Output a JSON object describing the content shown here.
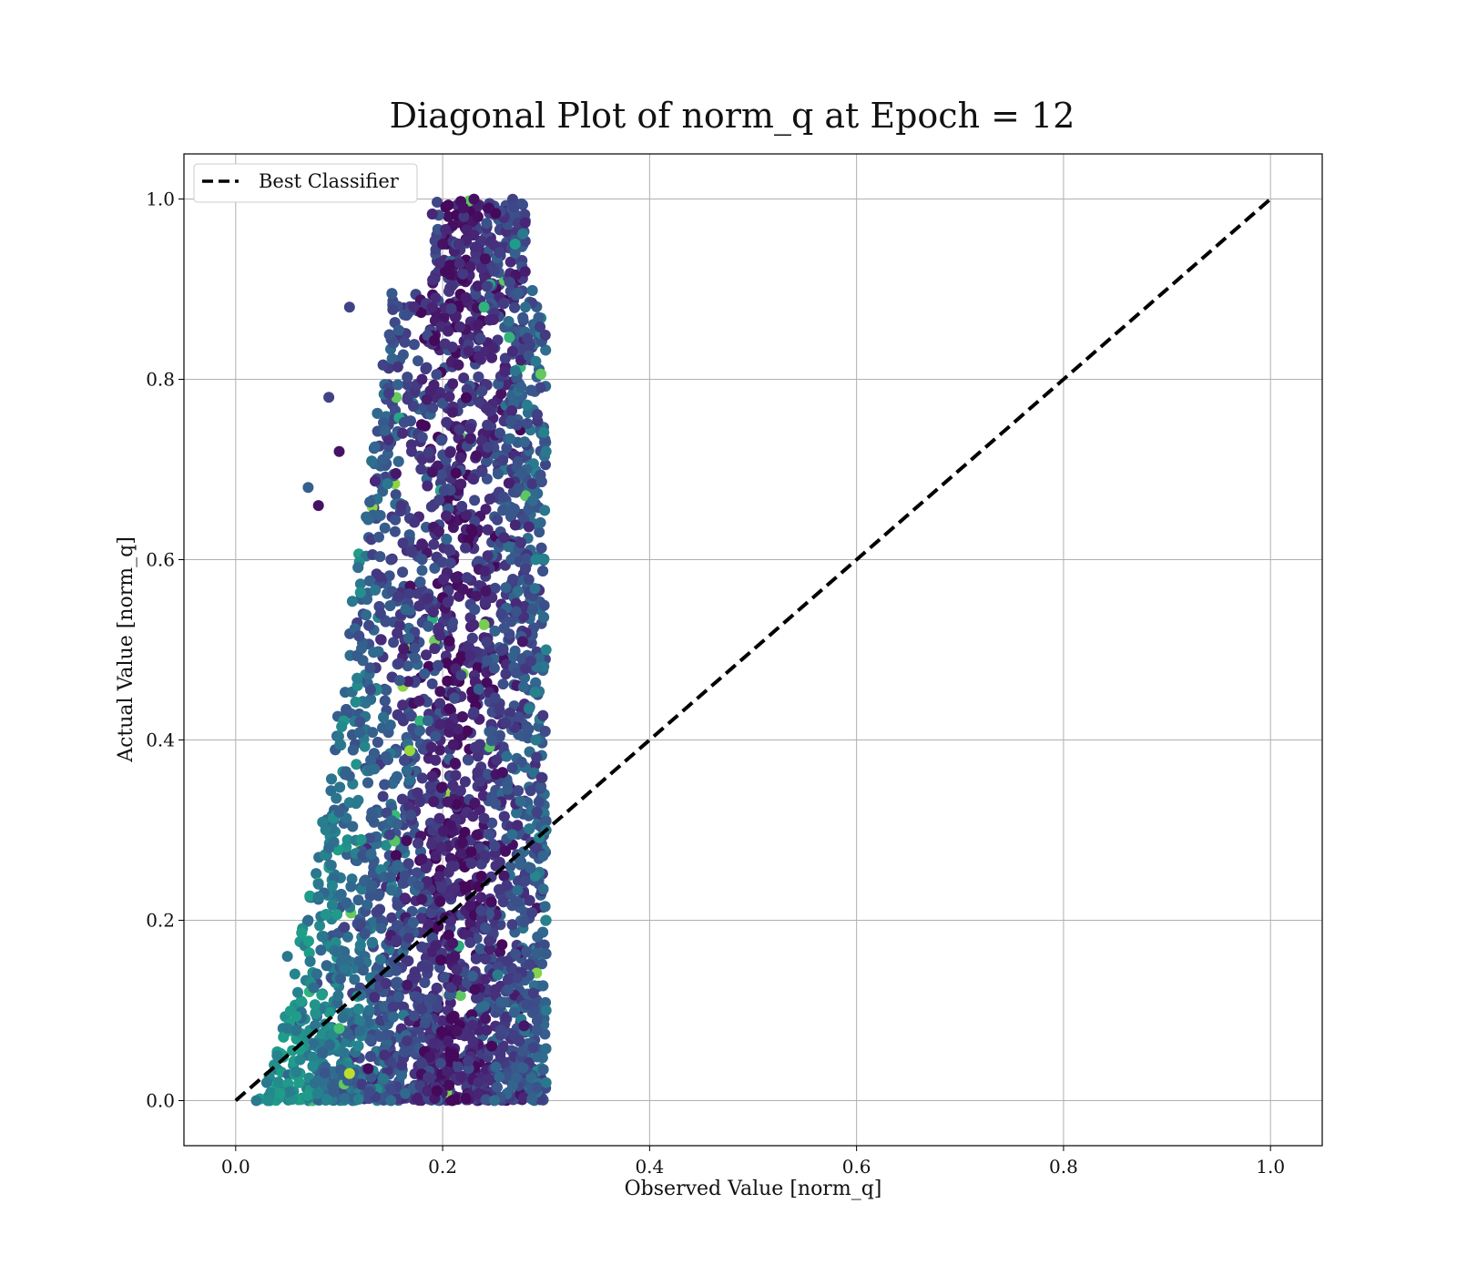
{
  "chart_data": {
    "type": "scatter",
    "title": "Diagonal Plot of norm_q at Epoch = 12",
    "xlabel": "Observed Value [norm_q]",
    "ylabel": "Actual Value [norm_q]",
    "xlim": [
      -0.05,
      1.05
    ],
    "ylim": [
      -0.05,
      1.05
    ],
    "xticks": [
      "0.0",
      "0.2",
      "0.4",
      "0.6",
      "0.8",
      "1.0"
    ],
    "yticks": [
      "0.0",
      "0.2",
      "0.4",
      "0.6",
      "0.8",
      "1.0"
    ],
    "grid": true,
    "legend_position": "top-left",
    "colormap": "viridis",
    "series": [
      {
        "name": "Best Classifier",
        "kind": "line",
        "style": "dashed",
        "color": "#000000",
        "x": [
          0.0,
          1.0
        ],
        "y": [
          0.0,
          1.0
        ]
      },
      {
        "kind": "scatter",
        "description_points": "dense cloud; approximate envelope sampled below",
        "points": [
          [
            0.02,
            0.0,
            0.4
          ],
          [
            0.03,
            0.02,
            0.4
          ],
          [
            0.04,
            0.05,
            0.45
          ],
          [
            0.05,
            0.08,
            0.4
          ],
          [
            0.06,
            0.12,
            0.45
          ],
          [
            0.05,
            0.16,
            0.4
          ],
          [
            0.07,
            0.2,
            0.35
          ],
          [
            0.08,
            0.24,
            0.4
          ],
          [
            0.09,
            0.28,
            0.35
          ],
          [
            0.1,
            0.32,
            0.3
          ],
          [
            0.11,
            0.36,
            0.3
          ],
          [
            0.12,
            0.42,
            0.25
          ],
          [
            0.13,
            0.48,
            0.25
          ],
          [
            0.14,
            0.54,
            0.2
          ],
          [
            0.15,
            0.6,
            0.2
          ],
          [
            0.16,
            0.66,
            0.15
          ],
          [
            0.17,
            0.72,
            0.15
          ],
          [
            0.18,
            0.8,
            0.1
          ],
          [
            0.19,
            0.88,
            0.1
          ],
          [
            0.2,
            0.95,
            0.05
          ],
          [
            0.22,
            0.99,
            0.05
          ],
          [
            0.23,
            0.96,
            0.1
          ],
          [
            0.25,
            0.92,
            0.2
          ],
          [
            0.27,
            0.94,
            0.3
          ],
          [
            0.28,
            0.88,
            0.35
          ],
          [
            0.29,
            0.82,
            0.4
          ],
          [
            0.3,
            0.72,
            0.4
          ],
          [
            0.29,
            0.6,
            0.45
          ],
          [
            0.3,
            0.5,
            0.45
          ],
          [
            0.29,
            0.4,
            0.4
          ],
          [
            0.3,
            0.3,
            0.4
          ],
          [
            0.3,
            0.2,
            0.45
          ],
          [
            0.3,
            0.1,
            0.4
          ],
          [
            0.3,
            0.02,
            0.4
          ],
          [
            0.25,
            0.0,
            0.35
          ],
          [
            0.15,
            0.0,
            0.35
          ],
          [
            0.1,
            0.08,
            0.7
          ],
          [
            0.11,
            0.03,
            0.9
          ],
          [
            0.27,
            0.95,
            0.55
          ],
          [
            0.24,
            0.88,
            0.65
          ],
          [
            0.07,
            0.68,
            0.3
          ],
          [
            0.08,
            0.66,
            0.05
          ],
          [
            0.09,
            0.78,
            0.2
          ],
          [
            0.11,
            0.88,
            0.2
          ],
          [
            0.1,
            0.72,
            0.05
          ]
        ]
      }
    ]
  }
}
